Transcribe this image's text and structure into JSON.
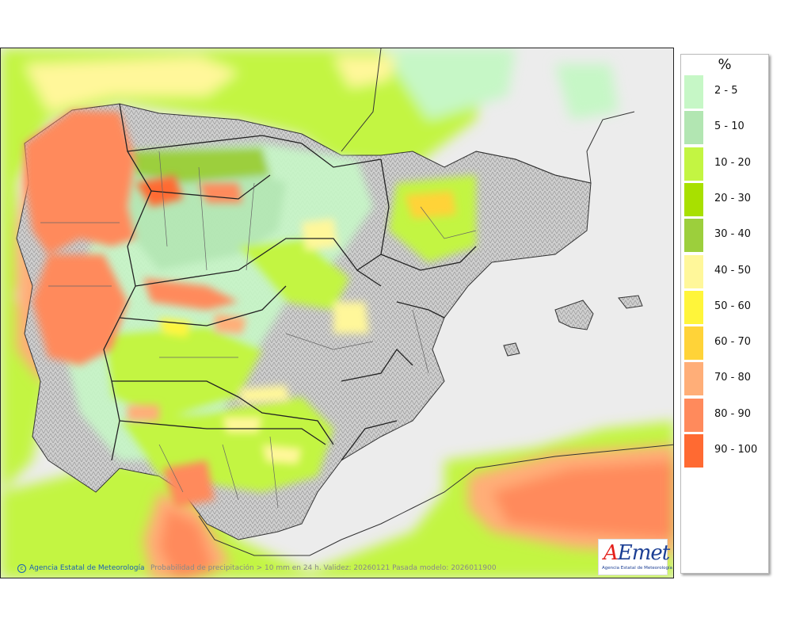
{
  "legend": {
    "unit": "%",
    "items": [
      {
        "label": "2 - 5",
        "color": "#c6f7c6"
      },
      {
        "label": "5 - 10",
        "color": "#b2e6b2"
      },
      {
        "label": "10 - 20",
        "color": "#c3f542"
      },
      {
        "label": "20 - 30",
        "color": "#a8e000"
      },
      {
        "label": "30 - 40",
        "color": "#9ccf3c"
      },
      {
        "label": "40 - 50",
        "color": "#fff79a"
      },
      {
        "label": "50 - 60",
        "color": "#fff53a"
      },
      {
        "label": "60 - 70",
        "color": "#ffd338"
      },
      {
        "label": "70 - 80",
        "color": "#ffae78"
      },
      {
        "label": "80 - 90",
        "color": "#ff8a5c"
      },
      {
        "label": "90 - 100",
        "color": "#ff6a32"
      }
    ]
  },
  "credit": "Agencia Estatal de Meteorología",
  "caption": "Probabilidad de precipitación > 10 mm en 24 h. Validez: 20260121 Pasada modelo: 2026011900",
  "logo": {
    "text": "AEmet",
    "subtitle": "Agencia Estatal de Meteorología"
  }
}
